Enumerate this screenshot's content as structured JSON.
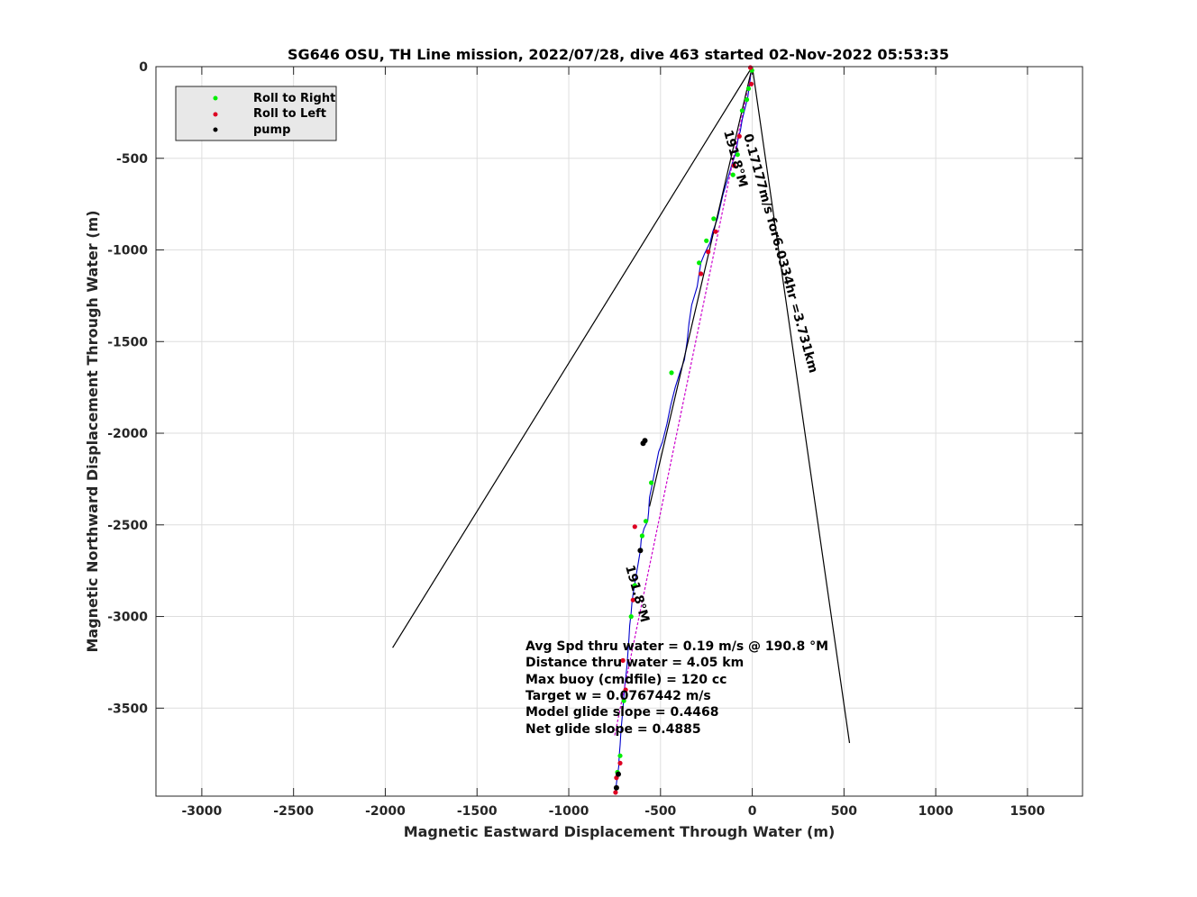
{
  "chart_data": {
    "type": "line",
    "title": "SG646 OSU, TH Line mission, 2022/07/28, dive 463 started 02-Nov-2022 05:53:35",
    "xlabel": "Magnetic Eastward Displacement Through Water (m)",
    "ylabel": "Magnetic Northward Displacement Through Water (m)",
    "xlim": [
      -3250,
      1800
    ],
    "ylim": [
      -3980,
      0
    ],
    "xticks": [
      -3000,
      -2500,
      -2000,
      -1500,
      -1000,
      -500,
      0,
      500,
      1000,
      1500
    ],
    "yticks": [
      0,
      -500,
      -1000,
      -1500,
      -2000,
      -2500,
      -3000,
      -3500
    ],
    "grid": true,
    "legend_position": "top-left",
    "legend": [
      {
        "label": "Roll to Right",
        "color": "#00ee00"
      },
      {
        "label": "Roll to Left",
        "color": "#dd0022"
      },
      {
        "label": "pump",
        "color": "#000000"
      }
    ],
    "series": [
      {
        "name": "track",
        "color": "#0000cc",
        "x": [
          0,
          -8,
          -15,
          -25,
          -40,
          -55,
          -65,
          -78,
          -90,
          -110,
          -130,
          -160,
          -190,
          -215,
          -230,
          -260,
          -280,
          -290,
          -300,
          -330,
          -345,
          -355,
          -370,
          -395,
          -420,
          -445,
          -465,
          -490,
          -510,
          -530,
          -545,
          -560,
          -565,
          -570,
          -590,
          -600,
          -605,
          -610,
          -620,
          -630,
          -640,
          -650,
          -655,
          -660,
          -668,
          -672,
          -678,
          -682,
          -688,
          -695,
          -700,
          -705,
          -710,
          -715,
          -720,
          -725,
          -728,
          -735,
          -740,
          -745
        ],
        "y": [
          0,
          -40,
          -100,
          -170,
          -230,
          -290,
          -350,
          -400,
          -470,
          -530,
          -600,
          -700,
          -830,
          -900,
          -960,
          -1020,
          -1070,
          -1130,
          -1200,
          -1300,
          -1400,
          -1500,
          -1600,
          -1670,
          -1750,
          -1850,
          -1950,
          -2050,
          -2100,
          -2200,
          -2280,
          -2350,
          -2430,
          -2480,
          -2520,
          -2560,
          -2580,
          -2640,
          -2700,
          -2760,
          -2820,
          -2880,
          -2920,
          -2980,
          -3050,
          -3120,
          -3200,
          -3260,
          -3320,
          -3380,
          -3440,
          -3500,
          -3560,
          -3620,
          -3700,
          -3760,
          -3820,
          -3870,
          -3910,
          -3960
        ]
      },
      {
        "name": "dashed",
        "color": "#cc00cc",
        "x": [
          0,
          -750
        ],
        "y": [
          0,
          -3650
        ]
      },
      {
        "name": "tri-line-1",
        "color": "#000000",
        "x": [
          0,
          -1960
        ],
        "y": [
          0,
          -3170
        ]
      },
      {
        "name": "tri-line-2",
        "color": "#000000",
        "x": [
          0,
          -560
        ],
        "y": [
          0,
          -2400
        ]
      },
      {
        "name": "tri-line-3",
        "color": "#000000",
        "x": [
          0,
          530
        ],
        "y": [
          0,
          -3690
        ]
      }
    ],
    "markers": {
      "roll_right": {
        "x": [
          -2,
          -20,
          -30,
          -55,
          -80,
          -105,
          -210,
          -250,
          -290,
          -440,
          -550,
          -580,
          -600,
          -640,
          -660,
          -700,
          -720,
          -735
        ],
        "y": [
          -20,
          -120,
          -180,
          -240,
          -480,
          -590,
          -830,
          -950,
          -1070,
          -1670,
          -2270,
          -2480,
          -2560,
          -2830,
          -3000,
          -3460,
          -3760,
          -3850
        ]
      },
      "roll_left": {
        "x": [
          -10,
          -5,
          -100,
          -70,
          -200,
          -240,
          -280,
          -640,
          -650,
          -705,
          -690,
          -720,
          -740,
          -745
        ],
        "y": [
          -5,
          -95,
          -540,
          -380,
          -900,
          -1010,
          -1130,
          -2510,
          -2910,
          -3240,
          -3400,
          -3800,
          -3880,
          -3960
        ]
      },
      "pump": {
        "x": [
          -585,
          -595,
          -610,
          -730,
          -740
        ],
        "y": [
          -2040,
          -2055,
          -2640,
          -3860,
          -3935
        ]
      }
    },
    "annotations": [
      {
        "text": "0.17177m/s for6.0334hr =3.731km"
      },
      {
        "text": "191.8°M"
      },
      {
        "text": "191.8°M"
      }
    ],
    "stats": [
      "Avg Spd thru water  =  0.19 m/s @ 190.8 °M",
      "Distance thru water =  4.05 km",
      "Max buoy (cmdfile)  = 120 cc",
      "Target w                    = 0.0767442 m/s",
      "Model glide slope    = 0.4468",
      "Net glide slope         = 0.4885"
    ]
  }
}
